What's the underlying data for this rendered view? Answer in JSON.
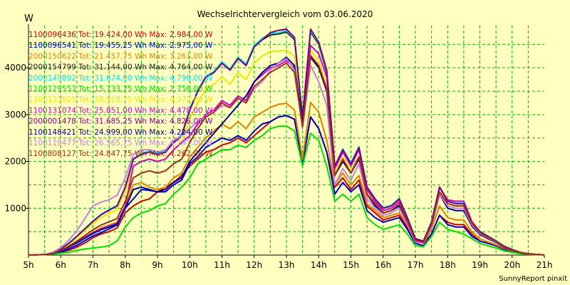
{
  "chart_data": {
    "type": "line",
    "title": "Wechselrichtervergleich vom 03.06.2020",
    "ylabel": "W",
    "credit": "SunnyReport pinxit",
    "grid": true,
    "legend_position": "top-left",
    "ylim": [
      0,
      4900
    ],
    "xlim": [
      5,
      21
    ],
    "y_ticks": [
      1000,
      2000,
      3000,
      4000
    ],
    "x_ticks": [
      {
        "v": 5,
        "label": "5h"
      },
      {
        "v": 6,
        "label": "6h"
      },
      {
        "v": 7,
        "label": "7h"
      },
      {
        "v": 8,
        "label": "8h"
      },
      {
        "v": 9,
        "label": "9h"
      },
      {
        "v": 10,
        "label": "10h"
      },
      {
        "v": 11,
        "label": "11h"
      },
      {
        "v": 12,
        "label": "12h"
      },
      {
        "v": 13,
        "label": "13h"
      },
      {
        "v": 14,
        "label": "14h"
      },
      {
        "v": 15,
        "label": "15h"
      },
      {
        "v": 16,
        "label": "16h"
      },
      {
        "v": 17,
        "label": "17h"
      },
      {
        "v": 18,
        "label": "18h"
      },
      {
        "v": 19,
        "label": "19h"
      },
      {
        "v": 20,
        "label": "20h"
      },
      {
        "v": 21,
        "label": "21h"
      }
    ],
    "x": [
      5.5,
      5.75,
      6,
      6.25,
      6.5,
      6.75,
      7,
      7.25,
      7.5,
      7.75,
      8,
      8.25,
      8.5,
      8.75,
      9,
      9.25,
      9.5,
      9.75,
      10,
      10.25,
      10.5,
      10.75,
      11,
      11.25,
      11.5,
      11.75,
      12,
      12.25,
      12.5,
      12.75,
      13,
      13.25,
      13.5,
      13.75,
      14,
      14.25,
      14.5,
      14.75,
      15,
      15.25,
      15.5,
      15.75,
      16,
      16.25,
      16.5,
      16.75,
      17,
      17.25,
      17.5,
      17.75,
      18,
      18.25,
      18.5,
      18.75,
      19,
      19.25,
      19.5,
      19.75,
      20,
      20.25,
      20.5,
      20.75,
      21
    ],
    "series": [
      {
        "name": "1100096436",
        "legend": "1100096436 Tot: 19.424,00 Wh Max: 2.984,00 W",
        "color": "#cc0000",
        "values": [
          10,
          30,
          60,
          100,
          170,
          260,
          370,
          450,
          500,
          580,
          900,
          1050,
          1150,
          1200,
          1350,
          1450,
          1550,
          1700,
          1900,
          2050,
          2200,
          2250,
          2350,
          2400,
          2500,
          2400,
          2550,
          2700,
          2850,
          2950,
          2980,
          2900,
          1950,
          2950,
          2700,
          2200,
          1450,
          1650,
          1400,
          1600,
          1050,
          900,
          750,
          800,
          850,
          600,
          300,
          250,
          450,
          850,
          700,
          650,
          650,
          450,
          300,
          250,
          200,
          120,
          80,
          40,
          20,
          10,
          5
        ]
      },
      {
        "name": "1100096541",
        "legend": "1100096541 Tot: 19.455,25 Wh Max: 2.975,00 W",
        "color": "#0000cc",
        "values": [
          10,
          30,
          70,
          130,
          210,
          310,
          410,
          480,
          560,
          640,
          1000,
          1200,
          1400,
          1380,
          1350,
          1350,
          1500,
          1600,
          1950,
          2100,
          2300,
          2400,
          2500,
          2450,
          2550,
          2450,
          2650,
          2800,
          2850,
          2950,
          2980,
          2900,
          1950,
          2950,
          2700,
          2200,
          1300,
          1550,
          1350,
          1500,
          950,
          800,
          700,
          750,
          800,
          550,
          250,
          200,
          450,
          850,
          650,
          600,
          600,
          400,
          300,
          250,
          200,
          120,
          80,
          40,
          20,
          10,
          5
        ]
      },
      {
        "name": "2000150622",
        "legend": "2000150622 Tot: 21.457,75 Wh Max: 3.261,00 W",
        "color": "#e08000",
        "values": [
          10,
          40,
          90,
          170,
          260,
          380,
          490,
          580,
          640,
          700,
          1050,
          1500,
          1550,
          1450,
          1400,
          1450,
          1650,
          1750,
          2100,
          2300,
          2500,
          2650,
          2800,
          2700,
          2850,
          2700,
          2950,
          3050,
          3150,
          3220,
          3240,
          3100,
          2050,
          3260,
          3050,
          2450,
          1500,
          1750,
          1500,
          1700,
          1100,
          950,
          800,
          850,
          900,
          650,
          300,
          250,
          550,
          1050,
          800,
          750,
          750,
          500,
          350,
          280,
          220,
          140,
          90,
          45,
          20,
          10,
          5
        ]
      },
      {
        "name": "2000154799",
        "legend": "2000154799 Tot: 31.144,00 Wh Max: 4.764,00 W",
        "color": "#202020",
        "values": [
          10,
          50,
          130,
          250,
          400,
          560,
          720,
          860,
          960,
          1050,
          1450,
          2050,
          2150,
          2200,
          2150,
          2200,
          2400,
          2550,
          3100,
          3500,
          3800,
          3900,
          4100,
          3950,
          4200,
          4050,
          4450,
          4600,
          4700,
          4720,
          4764,
          4600,
          2950,
          4764,
          4500,
          3900,
          1900,
          2250,
          1950,
          2300,
          1450,
          1200,
          1000,
          1050,
          1200,
          800,
          350,
          300,
          700,
          1450,
          1150,
          1100,
          1100,
          700,
          500,
          400,
          300,
          190,
          120,
          60,
          30,
          15,
          5
        ]
      },
      {
        "name": "2000149892",
        "legend": "2000149892 Tot: 31.674,00 Wh Max: 4.796,00 W",
        "color": "#00e8e8",
        "values": [
          10,
          50,
          130,
          260,
          410,
          570,
          730,
          870,
          970,
          1060,
          1460,
          2060,
          2170,
          2220,
          2170,
          2220,
          2420,
          2570,
          3120,
          3520,
          3820,
          3920,
          4130,
          3970,
          4230,
          4080,
          4480,
          4630,
          4730,
          4750,
          4796,
          4630,
          2970,
          4796,
          4530,
          3930,
          1900,
          2270,
          1970,
          2320,
          1460,
          1210,
          1010,
          1060,
          1210,
          810,
          350,
          300,
          710,
          1460,
          1160,
          1110,
          1110,
          710,
          510,
          410,
          310,
          195,
          120,
          60,
          30,
          15,
          5
        ]
      },
      {
        "name": "1100129553",
        "legend": "1100129553 Tot: 15.733,75 Wh Max: 2.756,00 W",
        "color": "#00e000",
        "values": [
          10,
          20,
          40,
          60,
          100,
          130,
          150,
          170,
          200,
          300,
          600,
          800,
          900,
          950,
          1050,
          1100,
          1300,
          1450,
          1650,
          1950,
          2050,
          2150,
          2250,
          2250,
          2350,
          2300,
          2450,
          2550,
          2700,
          2750,
          2756,
          2650,
          1900,
          2600,
          2450,
          1900,
          1150,
          1300,
          1150,
          1300,
          800,
          650,
          550,
          600,
          650,
          450,
          200,
          180,
          400,
          700,
          550,
          500,
          450,
          350,
          250,
          200,
          150,
          90,
          60,
          30,
          15,
          8,
          3
        ]
      },
      {
        "name": "1100131025",
        "legend": "1100131025 Tot: 28.918,75 Wh Max: 4.372,00 W",
        "color": "#e8e800",
        "values": [
          10,
          45,
          120,
          230,
          370,
          520,
          670,
          800,
          890,
          970,
          1350,
          1900,
          2000,
          2050,
          2000,
          2050,
          2250,
          2400,
          2900,
          3250,
          3550,
          3650,
          3800,
          3650,
          3900,
          3750,
          4100,
          4250,
          4350,
          4360,
          4372,
          4250,
          2700,
          4372,
          4150,
          3600,
          1750,
          2100,
          1800,
          2100,
          1350,
          1100,
          900,
          950,
          1100,
          750,
          320,
          280,
          650,
          1350,
          1050,
          1000,
          1000,
          650,
          460,
          370,
          280,
          170,
          110,
          55,
          25,
          12,
          5
        ]
      },
      {
        "name": "1100131074",
        "legend": "1100131074 Tot: 25.851,00 Wh Max: 4.478,00 W",
        "color": "#d000d0",
        "values": [
          10,
          40,
          100,
          180,
          280,
          380,
          480,
          560,
          620,
          680,
          1050,
          1900,
          2000,
          2050,
          2000,
          2050,
          2250,
          2400,
          2550,
          2800,
          3000,
          3100,
          3300,
          3200,
          3400,
          3300,
          3700,
          3850,
          4000,
          4050,
          4150,
          4000,
          2850,
          4478,
          4300,
          3800,
          1850,
          2200,
          1900,
          2250,
          1400,
          1150,
          950,
          1000,
          1150,
          780,
          330,
          290,
          680,
          1450,
          1180,
          1150,
          1150,
          720,
          500,
          400,
          300,
          180,
          110,
          55,
          25,
          12,
          5
        ]
      },
      {
        "name": "2000001478",
        "legend": "2000001478 Tot: 31.685,25 Wh Max: 4.826,00 W",
        "color": "#800080",
        "values": [
          10,
          50,
          130,
          250,
          400,
          560,
          720,
          860,
          960,
          1050,
          1450,
          2050,
          2150,
          2200,
          2150,
          2200,
          2400,
          2550,
          3100,
          3500,
          3800,
          3900,
          4100,
          3950,
          4200,
          4050,
          4450,
          4600,
          4750,
          4800,
          4826,
          4650,
          2950,
          4826,
          4550,
          3950,
          1900,
          2250,
          1950,
          2300,
          1450,
          1200,
          1000,
          1050,
          1200,
          800,
          350,
          300,
          700,
          1450,
          1150,
          1100,
          1100,
          700,
          500,
          400,
          300,
          190,
          120,
          60,
          30,
          15,
          5
        ]
      },
      {
        "name": "1100148421",
        "legend": "1100148421 Tot: 24.999,00 Wh Max: 4.224,00 W",
        "color": "#000090",
        "values": [
          10,
          35,
          90,
          170,
          260,
          360,
          460,
          540,
          600,
          660,
          1000,
          1400,
          1450,
          1400,
          1350,
          1400,
          1550,
          1650,
          2000,
          2200,
          2400,
          2600,
          2800,
          3000,
          3200,
          3400,
          3700,
          3900,
          4050,
          4100,
          4224,
          4050,
          2800,
          4224,
          4000,
          3500,
          1700,
          2000,
          1750,
          2050,
          1300,
          1050,
          900,
          950,
          1050,
          700,
          300,
          260,
          620,
          1300,
          1000,
          950,
          950,
          620,
          440,
          350,
          270,
          160,
          100,
          50,
          25,
          12,
          5
        ]
      },
      {
        "name": "1100119477",
        "legend": "1100119477 Tot: 26.565,75 Wh Max: 4.197,00 W",
        "color": "#c080e0",
        "values": [
          10,
          60,
          160,
          320,
          520,
          780,
          1050,
          1130,
          1180,
          1280,
          1650,
          2150,
          2250,
          2250,
          2200,
          2250,
          2450,
          2550,
          2700,
          2850,
          2950,
          3050,
          3200,
          3150,
          3350,
          3250,
          3550,
          3700,
          3950,
          4100,
          4197,
          3950,
          2700,
          4050,
          3700,
          3200,
          1500,
          1850,
          1600,
          1950,
          1200,
          1000,
          850,
          900,
          1000,
          650,
          280,
          250,
          600,
          1300,
          1050,
          1000,
          1000,
          650,
          460,
          370,
          280,
          170,
          110,
          55,
          25,
          12,
          5
        ]
      },
      {
        "name": "1100808127",
        "legend": "1100808127 Tot: 24.847,75 Wh Max: 4.262,00 W",
        "color": "#a03010",
        "values": [
          10,
          40,
          100,
          190,
          300,
          420,
          540,
          640,
          710,
          780,
          1150,
          1650,
          1750,
          1800,
          1750,
          1800,
          1950,
          2050,
          2400,
          2700,
          2950,
          3050,
          3250,
          3150,
          3350,
          3250,
          3600,
          3750,
          3900,
          4000,
          4100,
          3900,
          2750,
          4262,
          4050,
          3550,
          1700,
          2050,
          1750,
          2100,
          1300,
          1100,
          900,
          950,
          1100,
          720,
          310,
          270,
          650,
          1350,
          1100,
          1050,
          1050,
          680,
          480,
          380,
          290,
          175,
          110,
          55,
          25,
          12,
          5
        ]
      }
    ]
  }
}
